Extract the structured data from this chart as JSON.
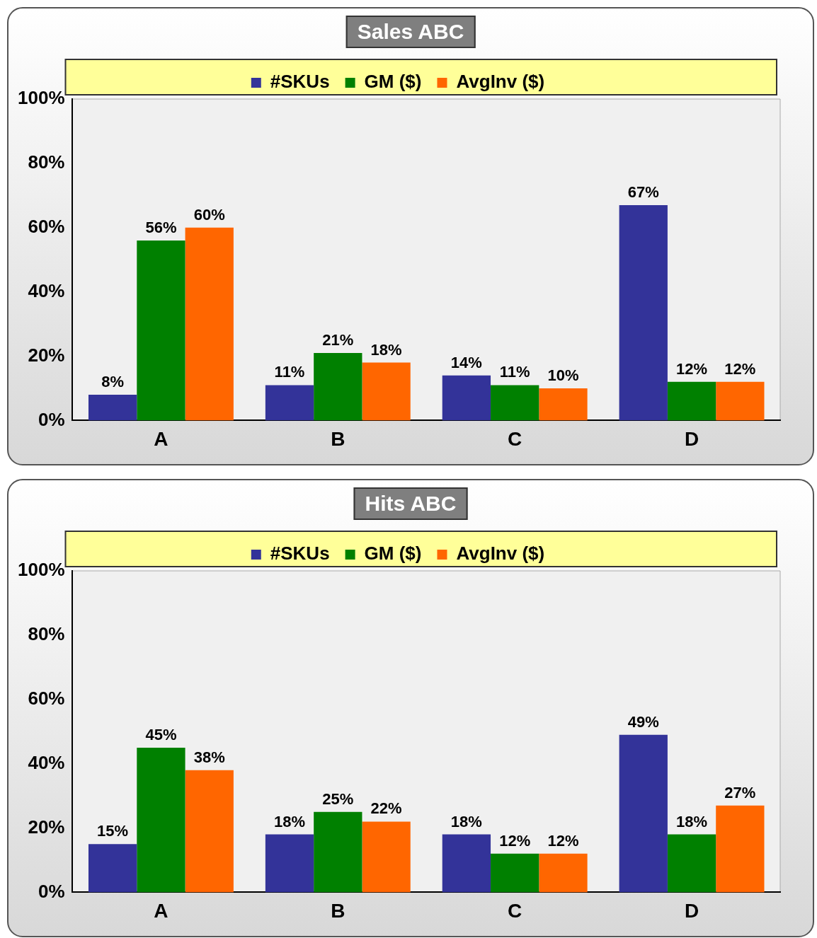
{
  "chart_data": [
    {
      "type": "bar",
      "title": "Sales ABC",
      "categories": [
        "A",
        "B",
        "C",
        "D"
      ],
      "series": [
        {
          "name": "#SKUs",
          "color": "#333399",
          "values": [
            8,
            11,
            14,
            67
          ],
          "value_labels": [
            "8%",
            "11%",
            "14%",
            "67%"
          ]
        },
        {
          "name": "GM ($)",
          "color": "#008000",
          "values": [
            56,
            21,
            11,
            12
          ],
          "value_labels": [
            "56%",
            "21%",
            "11%",
            "12%"
          ]
        },
        {
          "name": "AvgInv ($)",
          "color": "#ff6600",
          "values": [
            60,
            18,
            10,
            12
          ],
          "value_labels": [
            "60%",
            "18%",
            "10%",
            "12%"
          ]
        }
      ],
      "ylim": [
        0,
        100
      ],
      "yticks": [
        {
          "value": 0,
          "label": "0%"
        },
        {
          "value": 20,
          "label": "20%"
        },
        {
          "value": 40,
          "label": "40%"
        },
        {
          "value": 60,
          "label": "60%"
        },
        {
          "value": 80,
          "label": "80%"
        },
        {
          "value": 100,
          "label": "100%"
        }
      ],
      "grid": false,
      "legend": "top"
    },
    {
      "type": "bar",
      "title": "Hits ABC",
      "categories": [
        "A",
        "B",
        "C",
        "D"
      ],
      "series": [
        {
          "name": "#SKUs",
          "color": "#333399",
          "values": [
            15,
            18,
            18,
            49
          ],
          "value_labels": [
            "15%",
            "18%",
            "18%",
            "49%"
          ]
        },
        {
          "name": "GM ($)",
          "color": "#008000",
          "values": [
            45,
            25,
            12,
            18
          ],
          "value_labels": [
            "45%",
            "25%",
            "12%",
            "18%"
          ]
        },
        {
          "name": "AvgInv ($)",
          "color": "#ff6600",
          "values": [
            38,
            22,
            12,
            27
          ],
          "value_labels": [
            "38%",
            "22%",
            "12%",
            "27%"
          ]
        }
      ],
      "ylim": [
        0,
        100
      ],
      "yticks": [
        {
          "value": 0,
          "label": "0%"
        },
        {
          "value": 20,
          "label": "20%"
        },
        {
          "value": 40,
          "label": "40%"
        },
        {
          "value": 60,
          "label": "60%"
        },
        {
          "value": 80,
          "label": "80%"
        },
        {
          "value": 100,
          "label": "100%"
        }
      ],
      "grid": false,
      "legend": "top"
    }
  ]
}
